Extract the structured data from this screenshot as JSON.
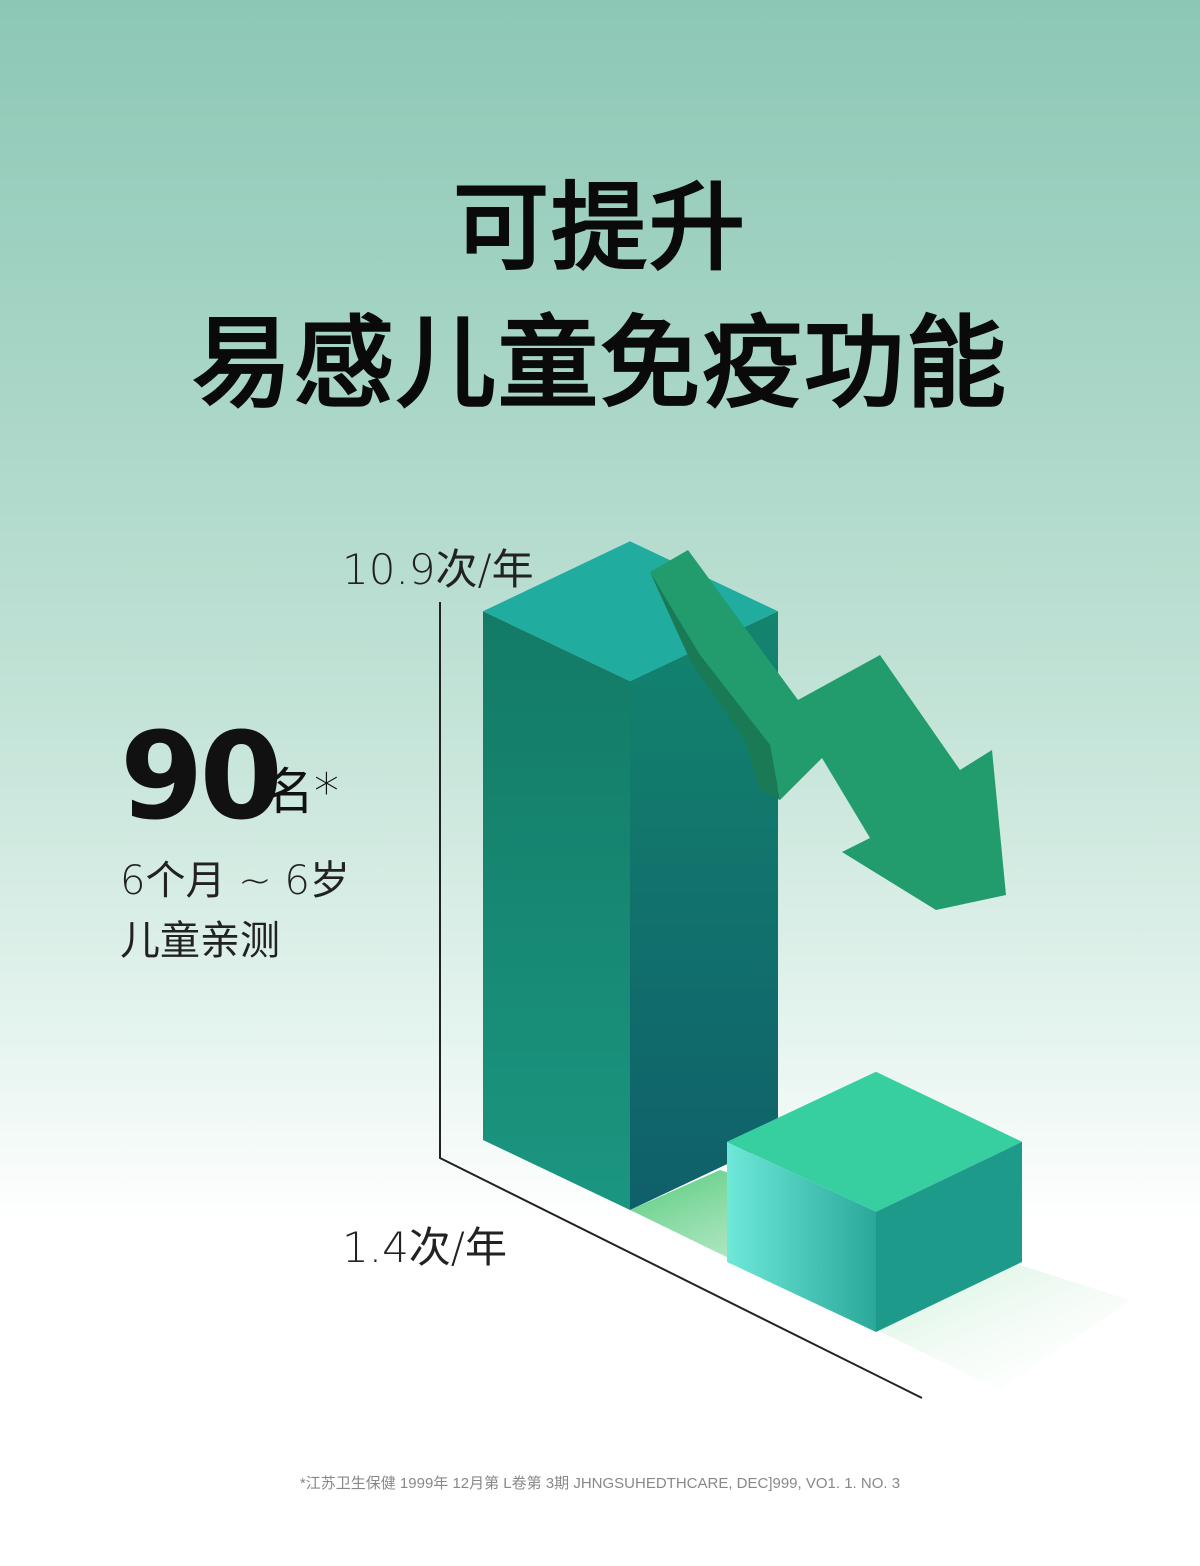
{
  "title_line1": "可提升",
  "title_line2": "易感儿童免疫功能",
  "sample": {
    "number": "90",
    "unit": "名*",
    "age": "6个月 ~ 6岁",
    "desc": "儿童亲测"
  },
  "footnote": "*江苏卫生保健 1999年 12月第 L卷第 3期 JHNGSUHEDTHCARE, DEC]999, VO1. 1. NO. 3",
  "chart_data": {
    "type": "bar",
    "style": "3d",
    "categories": [
      "",
      ""
    ],
    "values": [
      10.9,
      1.4
    ],
    "data_labels": [
      "10.9次/年",
      "1.4次/年"
    ],
    "trend": "down-arrow",
    "colors": {
      "tall_bar": "#148a78",
      "short_bar": "#3dd0a8",
      "arrow": "#22996a"
    }
  }
}
